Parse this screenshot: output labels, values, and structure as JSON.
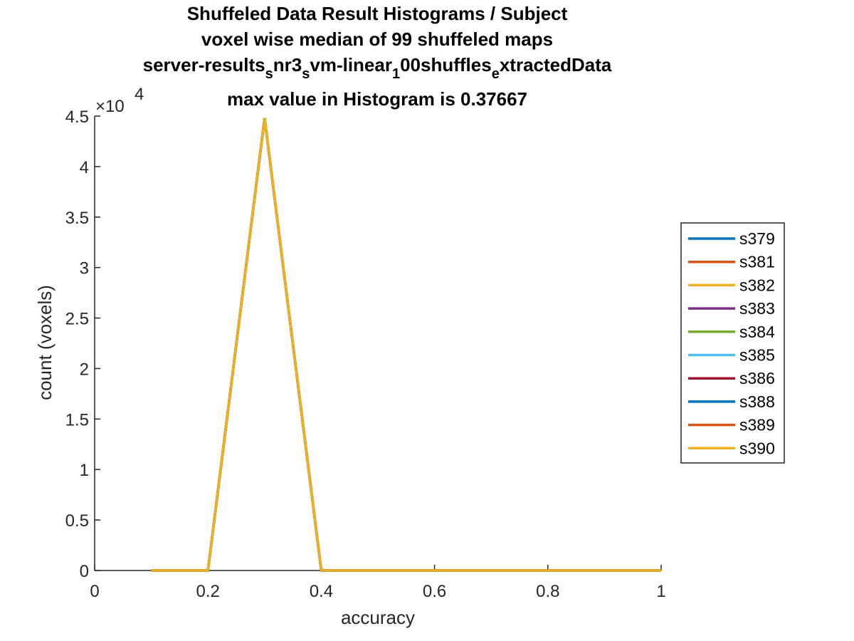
{
  "chart_data": {
    "type": "line",
    "title_lines": [
      "Shuffeled Data Result Histograms / Subject",
      "voxel wise median of 99 shuffeled maps",
      "max value in Histogram is 0.37667"
    ],
    "title_line3": {
      "parts": [
        "server-results",
        "s",
        "nr3",
        "s",
        "vm-linear",
        "1",
        "00shuffles",
        "e",
        "xtractedData"
      ]
    },
    "xlabel": "accuracy",
    "ylabel": "count (voxels)",
    "xlim": [
      0,
      1
    ],
    "ylim": [
      0,
      45000
    ],
    "xticks": [
      "0",
      "0.2",
      "0.4",
      "0.6",
      "0.8",
      "1"
    ],
    "yticks": [
      "0",
      "0.5",
      "1",
      "1.5",
      "2",
      "2.5",
      "3",
      "3.5",
      "4",
      "4.5"
    ],
    "y_exponent_base": "×10",
    "y_exponent_power": "4",
    "grid": false,
    "legend_position": "right",
    "x": [
      0.1,
      0.2,
      0.3,
      0.4,
      0.5,
      0.6,
      0.7,
      0.8,
      0.9,
      1.0
    ],
    "series": [
      {
        "name": "s379",
        "color": "#0072BD",
        "values": [
          0,
          0,
          44800,
          0,
          0,
          0,
          0,
          0,
          0,
          0
        ]
      },
      {
        "name": "s381",
        "color": "#D95319",
        "values": [
          0,
          0,
          44800,
          0,
          0,
          0,
          0,
          0,
          0,
          0
        ]
      },
      {
        "name": "s382",
        "color": "#EDB120",
        "values": [
          0,
          0,
          44800,
          0,
          0,
          0,
          0,
          0,
          0,
          0
        ]
      },
      {
        "name": "s383",
        "color": "#7E2F8E",
        "values": [
          0,
          0,
          44800,
          0,
          0,
          0,
          0,
          0,
          0,
          0
        ]
      },
      {
        "name": "s384",
        "color": "#77AC30",
        "values": [
          0,
          0,
          44800,
          0,
          0,
          0,
          0,
          0,
          0,
          0
        ]
      },
      {
        "name": "s385",
        "color": "#4DBEEE",
        "values": [
          0,
          0,
          44800,
          0,
          0,
          0,
          0,
          0,
          0,
          0
        ]
      },
      {
        "name": "s386",
        "color": "#A2142F",
        "values": [
          0,
          0,
          44800,
          0,
          0,
          0,
          0,
          0,
          0,
          0
        ]
      },
      {
        "name": "s388",
        "color": "#0072BD",
        "values": [
          0,
          0,
          44800,
          0,
          0,
          0,
          0,
          0,
          0,
          0
        ]
      },
      {
        "name": "s389",
        "color": "#D95319",
        "values": [
          0,
          0,
          44800,
          0,
          0,
          0,
          0,
          0,
          0,
          0
        ]
      },
      {
        "name": "s390",
        "color": "#EDB120",
        "values": [
          0,
          0,
          44800,
          0,
          0,
          0,
          0,
          0,
          0,
          0
        ]
      }
    ]
  }
}
